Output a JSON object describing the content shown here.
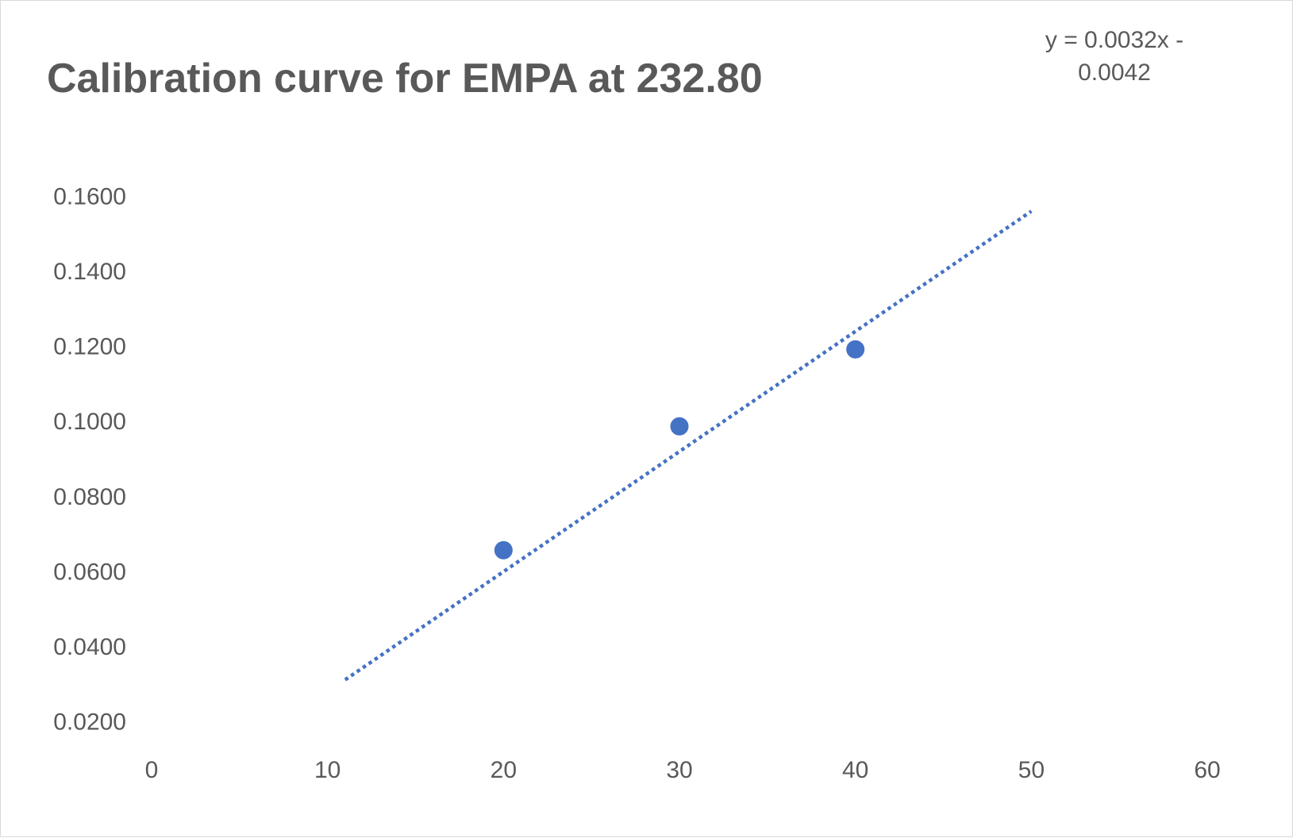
{
  "chart_data": {
    "type": "scatter",
    "title": "Calibration curve for EMPA at 232.80",
    "xlabel": "",
    "ylabel": "",
    "xlim": [
      0,
      60
    ],
    "ylim": [
      0.01,
      0.17
    ],
    "x_ticks": [
      "0",
      "10",
      "20",
      "30",
      "40",
      "50",
      "60"
    ],
    "y_ticks": [
      "0.0200",
      "0.0400",
      "0.0600",
      "0.0800",
      "0.1000",
      "0.1200",
      "0.1400",
      "0.1600"
    ],
    "x_tick_values": [
      0,
      10,
      20,
      30,
      40,
      50,
      60
    ],
    "y_tick_values": [
      0.02,
      0.04,
      0.06,
      0.08,
      0.1,
      0.12,
      0.14,
      0.16
    ],
    "grid": false,
    "series": [
      {
        "x": [
          20,
          30,
          40
        ],
        "values": [
          0.0655,
          0.0985,
          0.119
        ],
        "color": "#4472c4"
      }
    ],
    "trendline": {
      "type": "linear",
      "style": "dotted",
      "color": "#4472c4",
      "x_range": [
        11,
        50
      ],
      "slope": 0.0032,
      "intercept": -0.0042,
      "equation_line1": "y = 0.0032x -",
      "equation_line2": "0.0042"
    }
  }
}
